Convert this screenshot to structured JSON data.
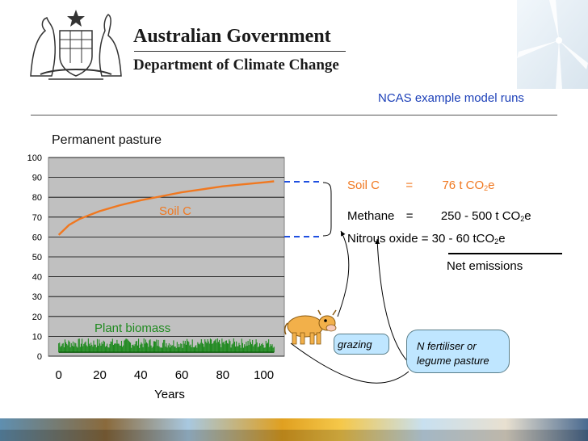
{
  "header": {
    "gov_name": "Australian Government",
    "dept_name": "Department of Climate Change",
    "crest_icon": "coat-of-arms-icon",
    "turbine_icon": "wind-turbine-icon"
  },
  "slide": {
    "title": "NCAS example model runs"
  },
  "colors": {
    "soil_c": "#f07820",
    "biomass": "#1f8a1f",
    "plot_bg": "#c0c0c0",
    "dashed": "#1f4fe0",
    "title_blue": "#1b3fb8",
    "callout_bg": "#bfe6ff"
  },
  "chart_data": {
    "type": "line",
    "title": "Permanent pasture",
    "xlabel": "Years",
    "ylabel": "",
    "xlim": [
      -5,
      110
    ],
    "ylim": [
      0,
      100
    ],
    "x_ticks": [
      "0",
      "20",
      "40",
      "60",
      "80",
      "100"
    ],
    "y_ticks": [
      "0",
      "10",
      "20",
      "30",
      "40",
      "50",
      "60",
      "70",
      "80",
      "90",
      "100"
    ],
    "grid": true,
    "series": [
      {
        "name": "Soil C",
        "x": [
          0,
          5,
          10,
          15,
          20,
          30,
          40,
          50,
          60,
          70,
          80,
          90,
          100,
          105
        ],
        "values": [
          61,
          66,
          69,
          71,
          73,
          76,
          78.5,
          80.5,
          82.5,
          84,
          85.5,
          86.5,
          87.5,
          88
        ]
      },
      {
        "name": "Plant biomass",
        "x": [
          0,
          105
        ],
        "values_range": [
          2,
          9
        ]
      }
    ]
  },
  "equations": {
    "soil_label": "Soil C",
    "soil_eq": "=",
    "soil_value": "76 t CO",
    "soil_sub": "2",
    "soil_suffix": "e",
    "methane_label": "Methane",
    "methane_eq": "=",
    "methane_value": "250 - 500 t CO",
    "methane_sub": "2",
    "methane_suffix": "e",
    "n2o_text": "Nitrous oxide = 30 - 60 tCO",
    "n2o_sub": "2",
    "n2o_suffix": "e",
    "net_label": "Net emissions"
  },
  "callouts": {
    "grazing": "grazing",
    "nfert_line1": "N fertiliser or",
    "nfert_line2": "legume pasture",
    "cow_icon": "cow-icon"
  }
}
